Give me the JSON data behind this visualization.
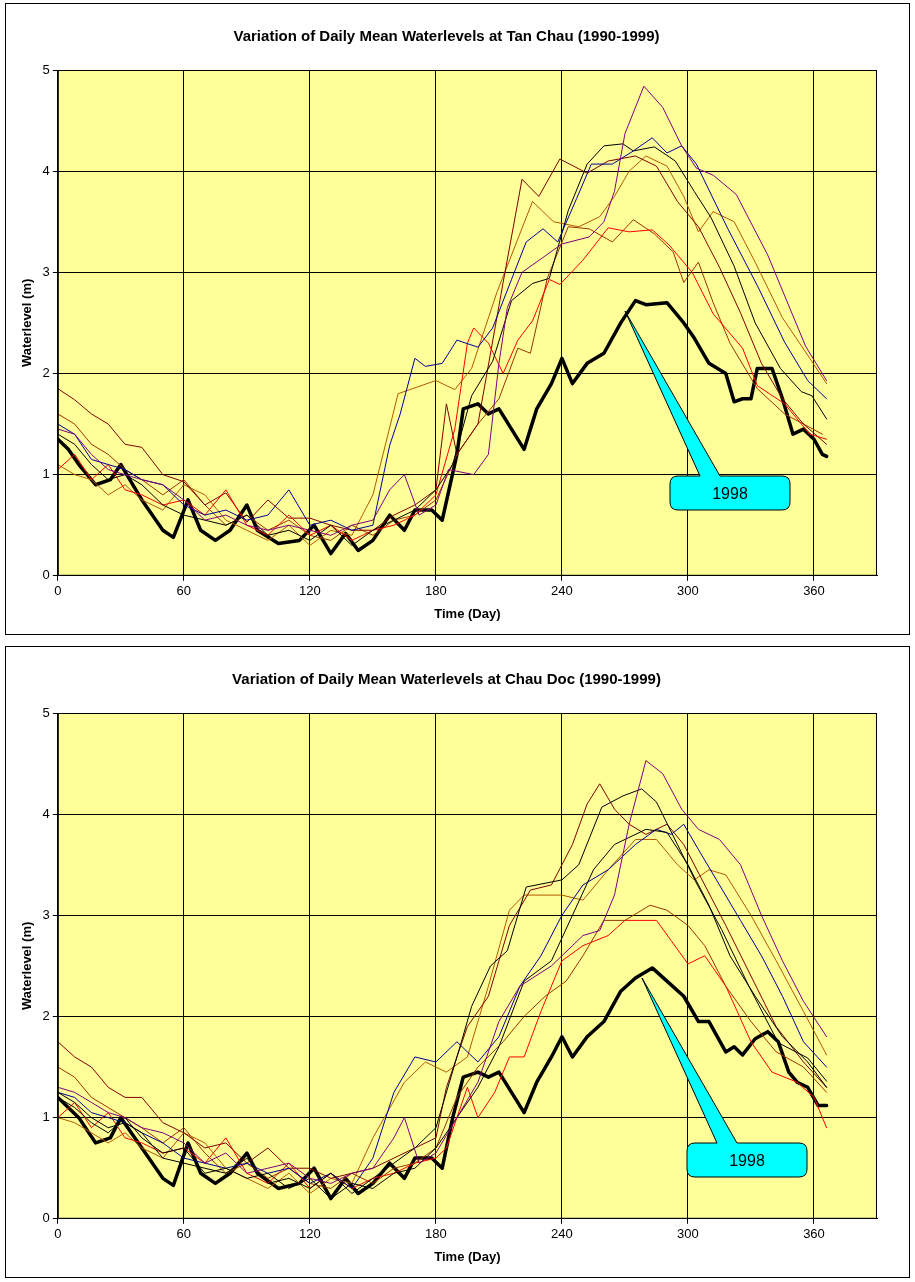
{
  "chart_data": [
    {
      "type": "line",
      "title": "Variation of Daily Mean Waterlevels at Tan Chau (1990-1999)",
      "xlabel": "Time (Day)",
      "ylabel": "Waterlevel (m)",
      "xlim": [
        0,
        390
      ],
      "xticks": [
        0,
        60,
        120,
        180,
        240,
        300,
        360
      ],
      "ylim": [
        0,
        5
      ],
      "yticks": [
        0,
        1,
        2,
        3,
        4,
        5
      ],
      "grid": true,
      "legend": false,
      "marker": "none",
      "series": [
        {
          "color": "#800080",
          "x": [
            0,
            8,
            16,
            24,
            32,
            40,
            50,
            60,
            70,
            80,
            90,
            100,
            110,
            120,
            130,
            140,
            150,
            158,
            165,
            172,
            180,
            186,
            198,
            205,
            210,
            214,
            221,
            240,
            253,
            260,
            265,
            270,
            279,
            288,
            297,
            304,
            312,
            323,
            338,
            356,
            366
          ],
          "values": [
            1.45,
            1.4,
            1.2,
            1.05,
            1.0,
            0.95,
            0.9,
            0.75,
            0.55,
            0.6,
            0.5,
            0.45,
            0.5,
            0.45,
            0.4,
            0.5,
            0.55,
            0.85,
            1.0,
            0.6,
            0.7,
            1.05,
            1.0,
            1.2,
            2.1,
            2.65,
            3.0,
            3.28,
            3.35,
            3.5,
            3.8,
            4.37,
            4.84,
            4.63,
            4.25,
            4.03,
            3.96,
            3.77,
            3.17,
            2.27,
            1.93
          ]
        },
        {
          "color": "#000099",
          "x": [
            0,
            8,
            16,
            24,
            32,
            40,
            50,
            60,
            70,
            80,
            90,
            100,
            110,
            120,
            130,
            140,
            150,
            158,
            163,
            170,
            175,
            183,
            190,
            200,
            207,
            216,
            223,
            231,
            238,
            247,
            254,
            264,
            274,
            283,
            290,
            297,
            304,
            319,
            333,
            346,
            357,
            366
          ],
          "values": [
            1.5,
            1.4,
            1.15,
            1.1,
            1.05,
            0.95,
            0.9,
            0.7,
            0.6,
            0.65,
            0.55,
            0.6,
            0.85,
            0.5,
            0.55,
            0.45,
            0.5,
            1.29,
            1.6,
            2.15,
            2.07,
            2.1,
            2.33,
            2.26,
            2.45,
            2.93,
            3.3,
            3.43,
            3.3,
            3.73,
            4.07,
            4.07,
            4.2,
            4.33,
            4.18,
            4.25,
            4.07,
            3.43,
            2.87,
            2.31,
            1.93,
            1.75
          ]
        },
        {
          "color": "#000000",
          "x": [
            0,
            8,
            16,
            24,
            32,
            40,
            50,
            60,
            70,
            80,
            90,
            100,
            110,
            120,
            130,
            140,
            150,
            160,
            170,
            180,
            188,
            197,
            207,
            216,
            226,
            234,
            243,
            252,
            260,
            269,
            274,
            284,
            294,
            303,
            311,
            322,
            332,
            344,
            354,
            359,
            366
          ],
          "values": [
            1.4,
            1.3,
            1.1,
            0.95,
            1.0,
            0.9,
            0.7,
            0.6,
            0.55,
            0.5,
            0.6,
            0.4,
            0.45,
            0.35,
            0.5,
            0.3,
            0.45,
            0.55,
            0.65,
            0.85,
            1.1,
            1.78,
            2.12,
            2.72,
            2.89,
            2.94,
            3.61,
            4.07,
            4.25,
            4.27,
            4.2,
            4.24,
            4.1,
            3.8,
            3.54,
            3.06,
            2.5,
            2.05,
            1.82,
            1.78,
            1.55
          ]
        },
        {
          "color": "#ff0000",
          "x": [
            0,
            8,
            16,
            24,
            32,
            40,
            50,
            60,
            70,
            80,
            90,
            100,
            110,
            120,
            130,
            140,
            150,
            160,
            170,
            180,
            189,
            195,
            198,
            205,
            212,
            219,
            226,
            234,
            239,
            250,
            262,
            272,
            283,
            291,
            302,
            312,
            326,
            333,
            346,
            358,
            366
          ],
          "values": [
            1.05,
            1.2,
            0.95,
            1.1,
            0.85,
            0.8,
            0.7,
            0.75,
            0.6,
            0.85,
            0.5,
            0.4,
            0.6,
            0.4,
            0.5,
            0.35,
            0.45,
            0.5,
            0.6,
            0.8,
            1.45,
            2.3,
            2.45,
            2.3,
            2.0,
            2.33,
            2.52,
            2.93,
            2.88,
            3.12,
            3.44,
            3.4,
            3.42,
            3.27,
            3.0,
            2.59,
            2.25,
            1.88,
            1.7,
            1.4,
            1.35
          ]
        },
        {
          "color": "#800000",
          "x": [
            0,
            8,
            16,
            24,
            32,
            40,
            50,
            60,
            70,
            80,
            90,
            100,
            110,
            120,
            130,
            140,
            150,
            160,
            170,
            180,
            185,
            190,
            200,
            212,
            221,
            229,
            239,
            252,
            262,
            275,
            285,
            295,
            305,
            315,
            325,
            335,
            345,
            355,
            366
          ],
          "values": [
            1.85,
            1.74,
            1.6,
            1.5,
            1.3,
            1.27,
            1.0,
            0.93,
            0.7,
            0.82,
            0.53,
            0.75,
            0.57,
            0.57,
            0.5,
            0.45,
            0.45,
            0.6,
            0.7,
            0.85,
            1.7,
            1.2,
            1.5,
            2.9,
            3.92,
            3.75,
            4.12,
            3.98,
            4.1,
            4.15,
            4.05,
            3.7,
            3.45,
            3.05,
            2.6,
            2.1,
            1.75,
            1.5,
            1.3
          ]
        },
        {
          "color": "#b35900",
          "x": [
            0,
            8,
            16,
            24,
            32,
            40,
            50,
            60,
            70,
            80,
            90,
            100,
            110,
            120,
            130,
            140,
            150,
            162,
            180,
            189,
            197,
            209,
            226,
            236,
            248,
            258,
            265,
            272,
            280,
            290,
            298,
            305,
            312,
            322,
            332,
            345,
            358,
            366
          ],
          "values": [
            1.1,
            1.0,
            0.95,
            0.8,
            0.9,
            0.75,
            0.65,
            0.9,
            0.8,
            0.55,
            0.45,
            0.35,
            0.5,
            0.3,
            0.45,
            0.4,
            0.8,
            1.8,
            1.93,
            1.84,
            2.05,
            2.8,
            3.7,
            3.5,
            3.45,
            3.55,
            3.75,
            4.0,
            4.15,
            4.05,
            3.75,
            3.4,
            3.6,
            3.5,
            3.1,
            2.55,
            2.15,
            1.9
          ]
        },
        {
          "color": "#993300",
          "x": [
            0,
            8,
            16,
            24,
            32,
            40,
            50,
            60,
            70,
            80,
            90,
            100,
            110,
            120,
            130,
            140,
            150,
            160,
            170,
            180,
            190,
            200,
            210,
            219,
            225,
            233,
            243,
            253,
            264,
            274,
            284,
            293,
            298,
            305,
            312,
            320,
            333,
            346,
            364
          ],
          "values": [
            1.6,
            1.5,
            1.3,
            1.2,
            1.05,
            0.95,
            0.8,
            0.95,
            0.7,
            0.5,
            0.6,
            0.45,
            0.55,
            0.4,
            0.35,
            0.5,
            0.4,
            0.55,
            0.6,
            0.75,
            1.2,
            1.5,
            1.75,
            2.25,
            2.2,
            2.94,
            3.45,
            3.43,
            3.3,
            3.52,
            3.38,
            3.2,
            2.9,
            3.1,
            2.7,
            2.3,
            1.85,
            1.6,
            1.4
          ]
        },
        {
          "name": "1998",
          "color": "#000000",
          "x": [
            0,
            5,
            10,
            18,
            25,
            30,
            40,
            50,
            55,
            62,
            68,
            75,
            82,
            90,
            95,
            105,
            115,
            122,
            130,
            137,
            143,
            150,
            158,
            165,
            170,
            178,
            183,
            190,
            193,
            200,
            205,
            210,
            222,
            228,
            235,
            240,
            245,
            252,
            260,
            268,
            275,
            280,
            290,
            298,
            303,
            310,
            318,
            322,
            326,
            330,
            333,
            340,
            345,
            350,
            355,
            360,
            364,
            366
          ],
          "values": [
            1.35,
            1.25,
            1.1,
            0.9,
            0.95,
            1.1,
            0.75,
            0.45,
            0.38,
            0.75,
            0.45,
            0.35,
            0.45,
            0.7,
            0.45,
            0.32,
            0.35,
            0.5,
            0.22,
            0.42,
            0.25,
            0.35,
            0.6,
            0.45,
            0.65,
            0.65,
            0.55,
            1.2,
            1.65,
            1.7,
            1.6,
            1.65,
            1.25,
            1.65,
            1.9,
            2.15,
            1.9,
            2.1,
            2.2,
            2.5,
            2.72,
            2.68,
            2.7,
            2.5,
            2.35,
            2.1,
            2.0,
            1.72,
            1.75,
            1.75,
            2.05,
            2.05,
            1.75,
            1.4,
            1.45,
            1.35,
            1.2,
            1.18
          ]
        }
      ]
    },
    {
      "type": "line",
      "title": "Variation of Daily Mean Waterlevels at Chau Doc (1990-1999)",
      "xlabel": "Time (Day)",
      "ylabel": "Waterlevel (m)",
      "xlim": [
        0,
        390
      ],
      "xticks": [
        0,
        60,
        120,
        180,
        240,
        300,
        360
      ],
      "ylim": [
        0,
        5
      ],
      "yticks": [
        0,
        1,
        2,
        3,
        4,
        5
      ],
      "grid": true,
      "legend": false,
      "marker": "none",
      "series": [
        {
          "color": "#800080",
          "x": [
            0,
            8,
            16,
            24,
            32,
            40,
            50,
            60,
            70,
            80,
            90,
            100,
            110,
            120,
            130,
            140,
            150,
            160,
            165,
            172,
            180,
            190,
            200,
            210,
            220,
            235,
            250,
            258,
            265,
            272,
            280,
            288,
            297,
            305,
            315,
            325,
            335,
            345,
            355,
            366
          ],
          "values": [
            1.3,
            1.25,
            1.15,
            1.05,
            1.0,
            0.9,
            0.85,
            0.75,
            0.55,
            0.65,
            0.45,
            0.5,
            0.55,
            0.4,
            0.35,
            0.45,
            0.5,
            0.8,
            1.0,
            0.55,
            0.65,
            1.0,
            1.35,
            1.95,
            2.3,
            2.5,
            2.8,
            2.85,
            3.2,
            3.9,
            4.53,
            4.4,
            4.05,
            3.85,
            3.75,
            3.5,
            3.0,
            2.55,
            2.15,
            1.8
          ]
        },
        {
          "color": "#000000",
          "x": [
            0,
            8,
            16,
            24,
            32,
            40,
            50,
            60,
            70,
            80,
            90,
            100,
            110,
            120,
            130,
            140,
            150,
            160,
            170,
            180,
            192,
            197,
            206,
            214,
            223,
            240,
            248,
            259,
            269,
            278,
            285,
            295,
            304,
            316,
            329,
            343,
            357,
            366
          ],
          "values": [
            1.25,
            1.15,
            1.0,
            0.9,
            0.95,
            0.85,
            0.6,
            0.55,
            0.5,
            0.45,
            0.6,
            0.35,
            0.4,
            0.3,
            0.45,
            0.25,
            0.4,
            0.55,
            0.7,
            0.9,
            1.74,
            2.1,
            2.5,
            2.65,
            3.28,
            3.35,
            3.5,
            4.07,
            4.18,
            4.25,
            4.12,
            3.7,
            3.32,
            2.86,
            2.3,
            1.74,
            1.59,
            1.36
          ]
        },
        {
          "color": "#000000",
          "x": [
            0,
            8,
            16,
            24,
            32,
            40,
            50,
            60,
            70,
            80,
            90,
            100,
            110,
            120,
            130,
            140,
            150,
            160,
            170,
            180,
            190,
            200,
            210,
            222,
            235,
            245,
            255,
            265,
            280,
            290,
            300,
            310,
            320,
            332,
            345,
            357,
            366
          ],
          "values": [
            1.2,
            1.1,
            0.95,
            0.85,
            1.0,
            0.8,
            0.65,
            0.7,
            0.45,
            0.5,
            0.4,
            0.45,
            0.3,
            0.4,
            0.2,
            0.35,
            0.3,
            0.45,
            0.5,
            0.7,
            1.0,
            1.3,
            1.7,
            2.35,
            2.55,
            3.0,
            3.45,
            3.7,
            3.85,
            3.82,
            3.5,
            3.1,
            2.6,
            2.2,
            1.8,
            1.55,
            1.3
          ]
        },
        {
          "color": "#000099",
          "x": [
            0,
            8,
            16,
            24,
            32,
            40,
            50,
            60,
            70,
            80,
            90,
            100,
            110,
            120,
            130,
            140,
            150,
            160,
            170,
            180,
            190,
            200,
            210,
            220,
            230,
            240,
            250,
            262,
            275,
            285,
            292,
            298,
            305,
            315,
            325,
            335,
            345,
            355,
            366
          ],
          "values": [
            1.25,
            1.2,
            1.05,
            1.0,
            0.95,
            0.85,
            0.75,
            0.6,
            0.55,
            0.5,
            0.55,
            0.45,
            0.5,
            0.35,
            0.45,
            0.3,
            0.6,
            1.25,
            1.6,
            1.55,
            1.75,
            1.55,
            1.8,
            2.3,
            2.6,
            3.0,
            3.3,
            3.45,
            3.7,
            3.85,
            3.8,
            3.9,
            3.65,
            3.3,
            2.95,
            2.6,
            2.2,
            1.75,
            1.5
          ]
        },
        {
          "color": "#800000",
          "x": [
            0,
            8,
            16,
            24,
            32,
            40,
            50,
            60,
            70,
            80,
            90,
            100,
            110,
            120,
            130,
            140,
            150,
            160,
            170,
            180,
            185,
            195,
            205,
            215,
            225,
            235,
            245,
            252,
            258,
            265,
            272,
            280,
            290,
            298,
            308,
            318,
            330,
            342,
            355,
            366
          ],
          "values": [
            1.75,
            1.6,
            1.5,
            1.3,
            1.2,
            1.2,
            0.95,
            0.85,
            0.7,
            0.75,
            0.55,
            0.7,
            0.5,
            0.5,
            0.4,
            0.45,
            0.5,
            0.6,
            0.7,
            0.8,
            1.3,
            1.9,
            2.2,
            2.9,
            3.25,
            3.3,
            3.7,
            4.1,
            4.3,
            4.05,
            3.9,
            3.8,
            3.9,
            3.7,
            3.3,
            2.9,
            2.4,
            1.9,
            1.55,
            1.3
          ]
        },
        {
          "color": "#b35900",
          "x": [
            0,
            8,
            16,
            24,
            32,
            40,
            50,
            60,
            70,
            80,
            90,
            100,
            110,
            120,
            130,
            140,
            150,
            165,
            175,
            185,
            195,
            205,
            215,
            222,
            240,
            250,
            262,
            275,
            285,
            295,
            303,
            310,
            318,
            330,
            342,
            355,
            366
          ],
          "values": [
            1.0,
            0.95,
            0.85,
            0.75,
            0.85,
            0.7,
            0.6,
            0.85,
            0.75,
            0.5,
            0.4,
            0.3,
            0.45,
            0.25,
            0.4,
            0.35,
            0.8,
            1.35,
            1.55,
            1.45,
            1.6,
            2.3,
            3.05,
            3.2,
            3.2,
            3.15,
            3.45,
            3.75,
            3.75,
            3.5,
            3.35,
            3.45,
            3.4,
            3.0,
            2.55,
            2.05,
            1.62
          ]
        },
        {
          "color": "#993300",
          "x": [
            0,
            8,
            16,
            24,
            32,
            40,
            50,
            60,
            70,
            80,
            90,
            100,
            110,
            120,
            130,
            140,
            150,
            160,
            170,
            180,
            190,
            200,
            212,
            222,
            232,
            242,
            250,
            260,
            270,
            282,
            290,
            300,
            308,
            318,
            330,
            342,
            355,
            366
          ],
          "values": [
            1.5,
            1.4,
            1.2,
            1.1,
            1.0,
            0.9,
            0.75,
            0.9,
            0.65,
            0.45,
            0.55,
            0.4,
            0.5,
            0.35,
            0.3,
            0.45,
            0.35,
            0.5,
            0.55,
            0.7,
            1.2,
            1.5,
            1.75,
            2.0,
            2.2,
            2.35,
            2.6,
            2.95,
            2.95,
            3.1,
            3.05,
            2.9,
            2.7,
            2.3,
            1.95,
            1.65,
            1.5,
            1.25
          ]
        },
        {
          "color": "#ff0000",
          "x": [
            0,
            8,
            16,
            24,
            32,
            40,
            50,
            60,
            70,
            80,
            90,
            100,
            110,
            120,
            130,
            140,
            150,
            160,
            170,
            180,
            185,
            195,
            200,
            208,
            215,
            222,
            230,
            240,
            250,
            262,
            270,
            285,
            292,
            300,
            308,
            318,
            330,
            340,
            352,
            360,
            366
          ],
          "values": [
            1.0,
            1.15,
            0.9,
            1.05,
            0.8,
            0.75,
            0.65,
            0.7,
            0.55,
            0.8,
            0.45,
            0.35,
            0.55,
            0.3,
            0.45,
            0.3,
            0.4,
            0.45,
            0.55,
            0.6,
            0.7,
            1.3,
            1.0,
            1.25,
            1.6,
            1.6,
            2.05,
            2.55,
            2.7,
            2.8,
            2.95,
            2.95,
            2.75,
            2.52,
            2.6,
            2.3,
            1.75,
            1.45,
            1.35,
            1.2,
            0.9
          ]
        },
        {
          "name": "1998",
          "color": "#000000",
          "x": [
            0,
            10,
            18,
            25,
            30,
            40,
            50,
            55,
            62,
            68,
            75,
            82,
            90,
            95,
            105,
            115,
            122,
            130,
            137,
            143,
            150,
            158,
            165,
            170,
            178,
            183,
            188,
            193,
            200,
            205,
            210,
            222,
            228,
            235,
            240,
            245,
            252,
            260,
            268,
            275,
            283,
            290,
            298,
            305,
            310,
            318,
            322,
            326,
            332,
            338,
            343,
            348,
            352,
            357,
            362,
            366
          ],
          "values": [
            1.2,
            1.0,
            0.75,
            0.8,
            1.0,
            0.7,
            0.4,
            0.33,
            0.75,
            0.45,
            0.35,
            0.45,
            0.65,
            0.45,
            0.3,
            0.35,
            0.5,
            0.2,
            0.4,
            0.25,
            0.35,
            0.55,
            0.4,
            0.6,
            0.6,
            0.5,
            1.0,
            1.4,
            1.45,
            1.4,
            1.45,
            1.05,
            1.35,
            1.6,
            1.8,
            1.6,
            1.8,
            1.95,
            2.25,
            2.38,
            2.48,
            2.35,
            2.2,
            1.95,
            1.95,
            1.65,
            1.7,
            1.62,
            1.78,
            1.85,
            1.75,
            1.45,
            1.35,
            1.3,
            1.12,
            1.12
          ]
        }
      ]
    }
  ]
}
